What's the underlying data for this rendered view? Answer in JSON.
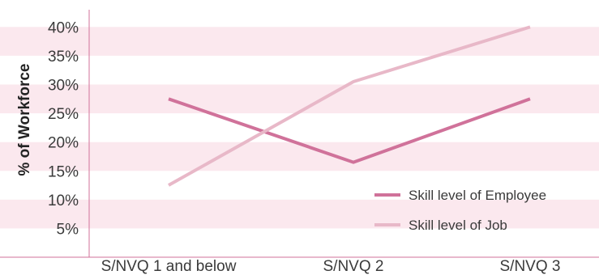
{
  "chart_data": {
    "type": "line",
    "title": "",
    "xlabel": "",
    "ylabel": "% of Workforce",
    "categories": [
      "S/NVQ 1 and below",
      "S/NVQ 2",
      "S/NVQ 3"
    ],
    "y_ticks": [
      "5%",
      "10%",
      "15%",
      "20%",
      "25%",
      "30%",
      "35%",
      "40%"
    ],
    "ylim": [
      0,
      43
    ],
    "grid": "alternating horizontal bands",
    "legend_position": "bottom-right",
    "series": [
      {
        "name": "Skill level of Employee",
        "values": [
          27.5,
          16.5,
          27.5
        ],
        "color": "#d0729a"
      },
      {
        "name": "Skill level of Job",
        "values": [
          12.5,
          30.5,
          40
        ],
        "color": "#e8b8c8"
      }
    ]
  }
}
